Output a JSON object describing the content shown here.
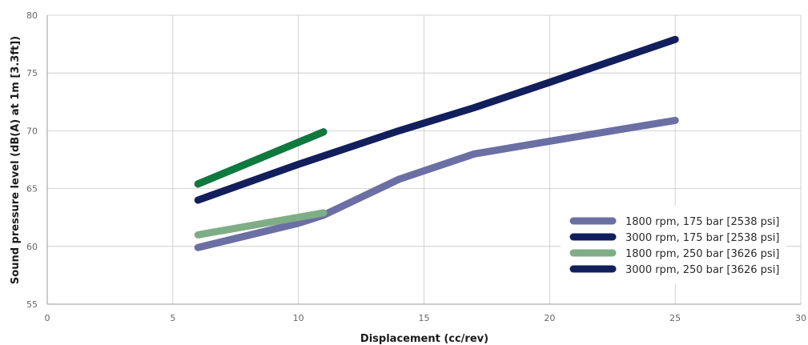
{
  "chart_data": {
    "type": "line",
    "title": "",
    "xlabel": "Displacement (cc/rev)",
    "ylabel": "Sound pressure level (dB(A) at 1m [3.3ft])",
    "xlim": [
      0,
      30
    ],
    "ylim": [
      55,
      80
    ],
    "xticks": [
      0,
      5,
      10,
      15,
      20,
      25,
      30
    ],
    "yticks": [
      55,
      60,
      65,
      70,
      75,
      80
    ],
    "grid": true,
    "legend_position": "bottom-right",
    "series": [
      {
        "name": "1800 rpm, 175 bar [2538 psi]",
        "color": "#6b6fa3",
        "x": [
          6,
          10,
          11,
          14,
          17,
          20,
          25
        ],
        "y": [
          59.9,
          62.0,
          62.7,
          65.8,
          68.0,
          69.1,
          70.9
        ]
      },
      {
        "name": "3000 rpm, 175 bar [2538 psi]",
        "color": "#121f5c",
        "x": [
          6,
          10,
          14,
          17,
          20,
          25
        ],
        "y": [
          64.0,
          67.1,
          70.0,
          72.0,
          74.2,
          77.9
        ]
      },
      {
        "name": "1800 rpm, 250 bar [3626 psi]",
        "color": "#7fae86",
        "x": [
          6,
          11
        ],
        "y": [
          61.0,
          62.9
        ]
      },
      {
        "name": "3000 rpm, 250 bar [3626 psi]",
        "color": "#121f5c",
        "x": [
          6,
          11
        ],
        "y": [
          65.4,
          69.9
        ]
      }
    ],
    "extra_lines": [
      {
        "color": "#0f7a3d",
        "x": [
          6,
          11
        ],
        "y": [
          65.4,
          69.9
        ]
      }
    ]
  }
}
